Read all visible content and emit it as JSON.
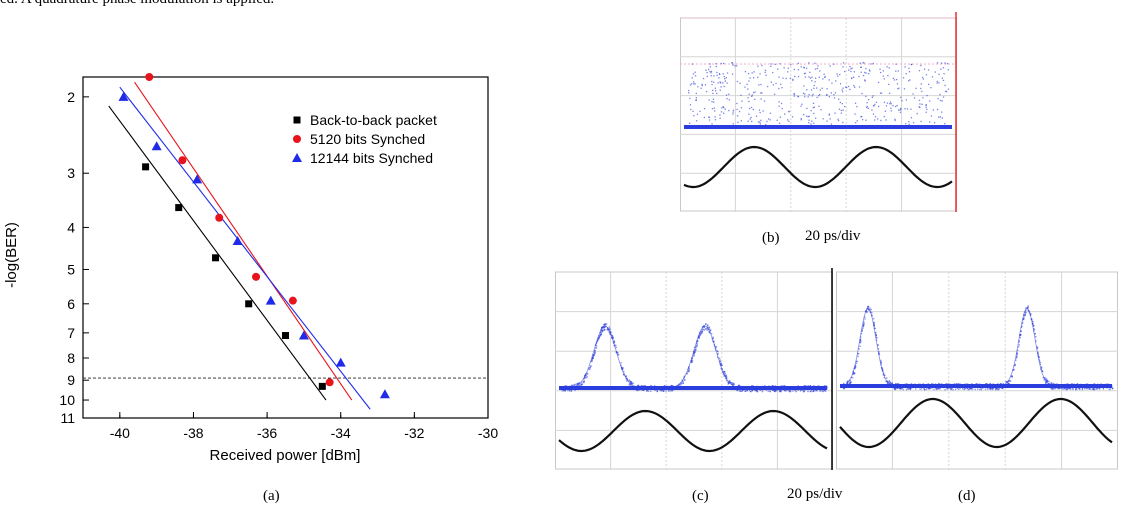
{
  "top_text": "ed. A quadrature phase modulation is applied.",
  "captions": {
    "a": "(a)",
    "b": "(b)",
    "b_time": "20 ps/div",
    "c": "(c)",
    "cd_time": "20 ps/div",
    "d": "(d)"
  },
  "chart_data": {
    "type": "scatter",
    "xlabel": "Received power [dBm]",
    "ylabel": "-log(BER)",
    "xlim": [
      -41,
      -30
    ],
    "x_ticks": [
      -40,
      -38,
      -36,
      -34,
      -32,
      -30
    ],
    "y_ticks": [
      2,
      3,
      4,
      5,
      6,
      7,
      8,
      9,
      10,
      11
    ],
    "y_scale": "log(-log(BER))",
    "legend_placement": "top-right",
    "reference_line_y": 8.9,
    "series": [
      {
        "name": "Back-to-back packet",
        "marker": "square",
        "color": "#000000",
        "x": [
          -39.3,
          -38.4,
          -37.4,
          -36.5,
          -35.5,
          -34.5
        ],
        "y": [
          2.9,
          3.6,
          4.7,
          6.0,
          7.1,
          9.3
        ],
        "fit": {
          "x": [
            -40.3,
            -34.4
          ],
          "y": [
            2.1,
            10.0
          ]
        }
      },
      {
        "name": "5120 bits Synched",
        "marker": "circle",
        "color": "#e8141b",
        "x": [
          -39.2,
          -38.3,
          -37.3,
          -36.3,
          -35.3,
          -34.3
        ],
        "y": [
          1.8,
          2.8,
          3.8,
          5.2,
          5.9,
          9.1
        ],
        "fit": {
          "x": [
            -39.6,
            -33.7
          ],
          "y": [
            1.85,
            10.0
          ]
        }
      },
      {
        "name": "12144 bits Synched",
        "marker": "triangle",
        "color": "#1f2be8",
        "x": [
          -39.9,
          -39.0,
          -37.9,
          -36.8,
          -35.9,
          -35.0,
          -34.0,
          -32.8
        ],
        "y": [
          2.0,
          2.6,
          3.1,
          4.3,
          5.9,
          7.1,
          8.2,
          9.7
        ],
        "fit": {
          "x": [
            -40.0,
            -33.2
          ],
          "y": [
            1.9,
            10.5
          ]
        }
      }
    ]
  },
  "panels": {
    "b": {
      "description_color": "#3040d8"
    },
    "c": {
      "description_color": "#3040d8"
    },
    "d": {
      "description_color": "#3040d8"
    }
  }
}
